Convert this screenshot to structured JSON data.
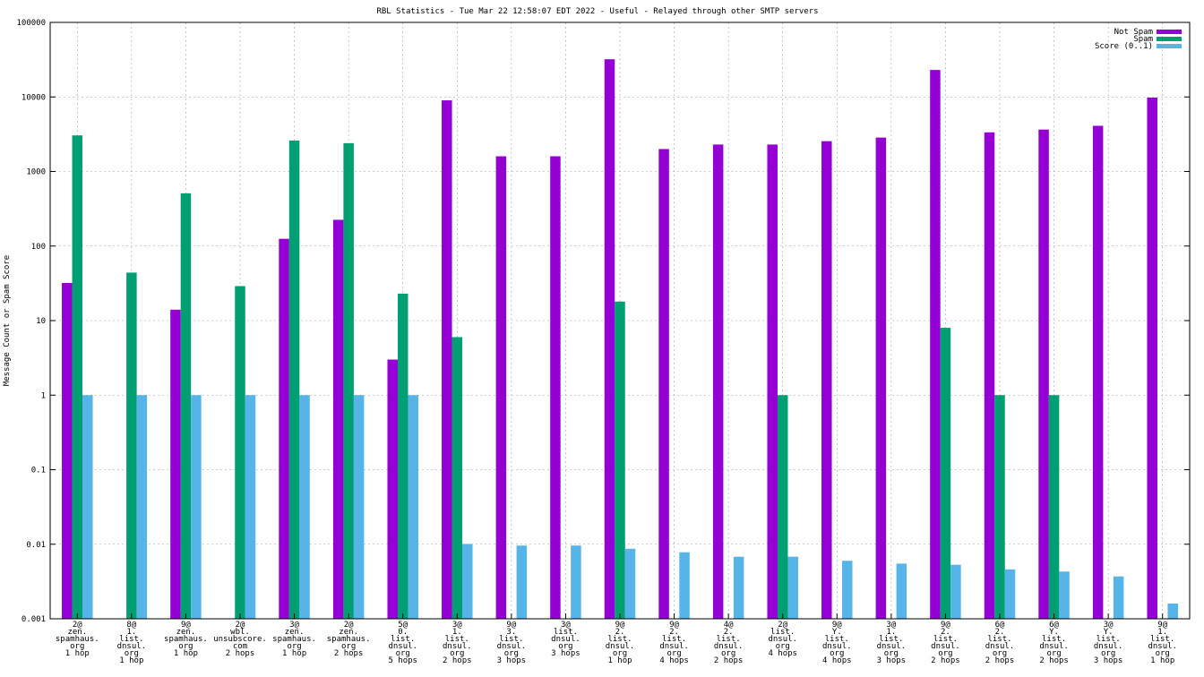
{
  "chart_data": {
    "type": "bar",
    "title": "RBL Statistics - Tue Mar 22 12:58:07 EDT 2022 - Useful - Relayed through other SMTP servers",
    "xlabel": "",
    "ylabel": "Message Count or Spam Score",
    "yscale": "log",
    "ylim": [
      0.001,
      100000
    ],
    "yticks": [
      "0.001",
      "0.01",
      "0.1",
      "1",
      "10",
      "100",
      "1000",
      "10000",
      "100000"
    ],
    "grid": true,
    "legend_position": "top-right",
    "categories": [
      [
        "2@",
        "zen.",
        "spamhaus.",
        "org",
        "1 hop"
      ],
      [
        "8@",
        "1.",
        "list.",
        "dnsul.",
        "org",
        "1 hop"
      ],
      [
        "9@",
        "zen.",
        "spamhaus.",
        "org",
        "1 hop"
      ],
      [
        "2@",
        "wbl.",
        "unsubscore.",
        "com",
        "2 hops"
      ],
      [
        "3@",
        "zen.",
        "spamhaus.",
        "org",
        "1 hop"
      ],
      [
        "2@",
        "zen.",
        "spamhaus.",
        "org",
        "2 hops"
      ],
      [
        "5@",
        "0.",
        "list.",
        "dnsul.",
        "org",
        "5 hops"
      ],
      [
        "3@",
        "1.",
        "list.",
        "dnsul.",
        "org",
        "2 hops"
      ],
      [
        "9@",
        "3.",
        "list.",
        "dnsul.",
        "org",
        "3 hops"
      ],
      [
        "3@",
        "list.",
        "dnsul.",
        "org",
        "3 hops"
      ],
      [
        "9@",
        "2.",
        "list.",
        "dnsul.",
        "org",
        "1 hop"
      ],
      [
        "9@",
        "2.",
        "list.",
        "dnsul.",
        "org",
        "4 hops"
      ],
      [
        "4@",
        "2.",
        "list.",
        "dnsul.",
        "org",
        "2 hops"
      ],
      [
        "2@",
        "list.",
        "dnsul.",
        "org",
        "4 hops"
      ],
      [
        "9@",
        "Y.",
        "list.",
        "dnsul.",
        "org",
        "4 hops"
      ],
      [
        "3@",
        "1.",
        "list.",
        "dnsul.",
        "org",
        "3 hops"
      ],
      [
        "9@",
        "2.",
        "list.",
        "dnsul.",
        "org",
        "2 hops"
      ],
      [
        "6@",
        "2.",
        "list.",
        "dnsul.",
        "org",
        "2 hops"
      ],
      [
        "6@",
        "Y.",
        "list.",
        "dnsul.",
        "org",
        "2 hops"
      ],
      [
        "3@",
        "Y.",
        "list.",
        "dnsul.",
        "org",
        "3 hops"
      ],
      [
        "9@",
        "1.",
        "list.",
        "dnsul.",
        "org",
        "1 hop"
      ]
    ],
    "series": [
      {
        "name": "Not Spam",
        "color": "#9400d3",
        "values": [
          32,
          null,
          14,
          null,
          125,
          225,
          3,
          9000,
          1600,
          1600,
          32000,
          2000,
          2300,
          2300,
          2550,
          2850,
          23000,
          3350,
          3650,
          4100,
          9800
        ]
      },
      {
        "name": "Spam",
        "color": "#009e73",
        "values": [
          3050,
          44,
          510,
          29,
          2600,
          2400,
          23,
          6,
          null,
          null,
          18,
          null,
          null,
          1,
          null,
          null,
          8,
          1,
          1,
          null,
          null
        ]
      },
      {
        "name": "Score (0..1)",
        "color": "#56b4e9",
        "values": [
          1,
          1,
          1,
          1,
          1,
          1,
          1,
          0.0101,
          0.0096,
          0.0096,
          0.0087,
          0.0078,
          0.0068,
          0.0068,
          0.006,
          0.0055,
          0.0053,
          0.0046,
          0.0043,
          0.0037,
          0.0016
        ]
      }
    ]
  }
}
